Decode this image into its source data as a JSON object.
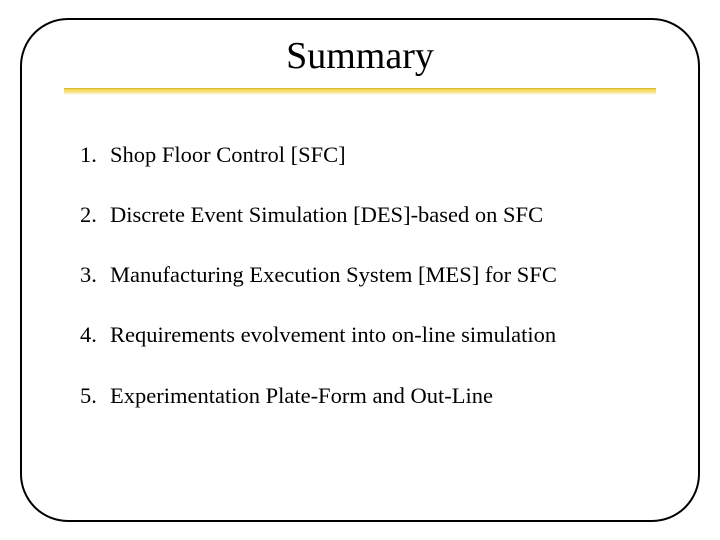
{
  "slide": {
    "title": "Summary",
    "title_fontsize": 38,
    "title_color": "#000000",
    "underline_gradient_top": "#f2d34a",
    "underline_gradient_mid": "#f6e27a",
    "underline_gradient_bottom": "#ffffff",
    "underline_border": "#d9b933",
    "frame_border_color": "#000000",
    "frame_border_width": 2.5,
    "frame_border_radius": 48,
    "background_color": "#ffffff",
    "body_fontsize": 22.5,
    "body_color": "#000000",
    "items": [
      {
        "text": "Shop Floor Control [SFC]"
      },
      {
        "text": "Discrete Event Simulation [DES]-based on SFC"
      },
      {
        "text": "Manufacturing Execution System [MES] for SFC"
      },
      {
        "text": "Requirements evolvement into on-line simulation"
      },
      {
        "text": "Experimentation Plate-Form and Out-Line"
      }
    ]
  }
}
